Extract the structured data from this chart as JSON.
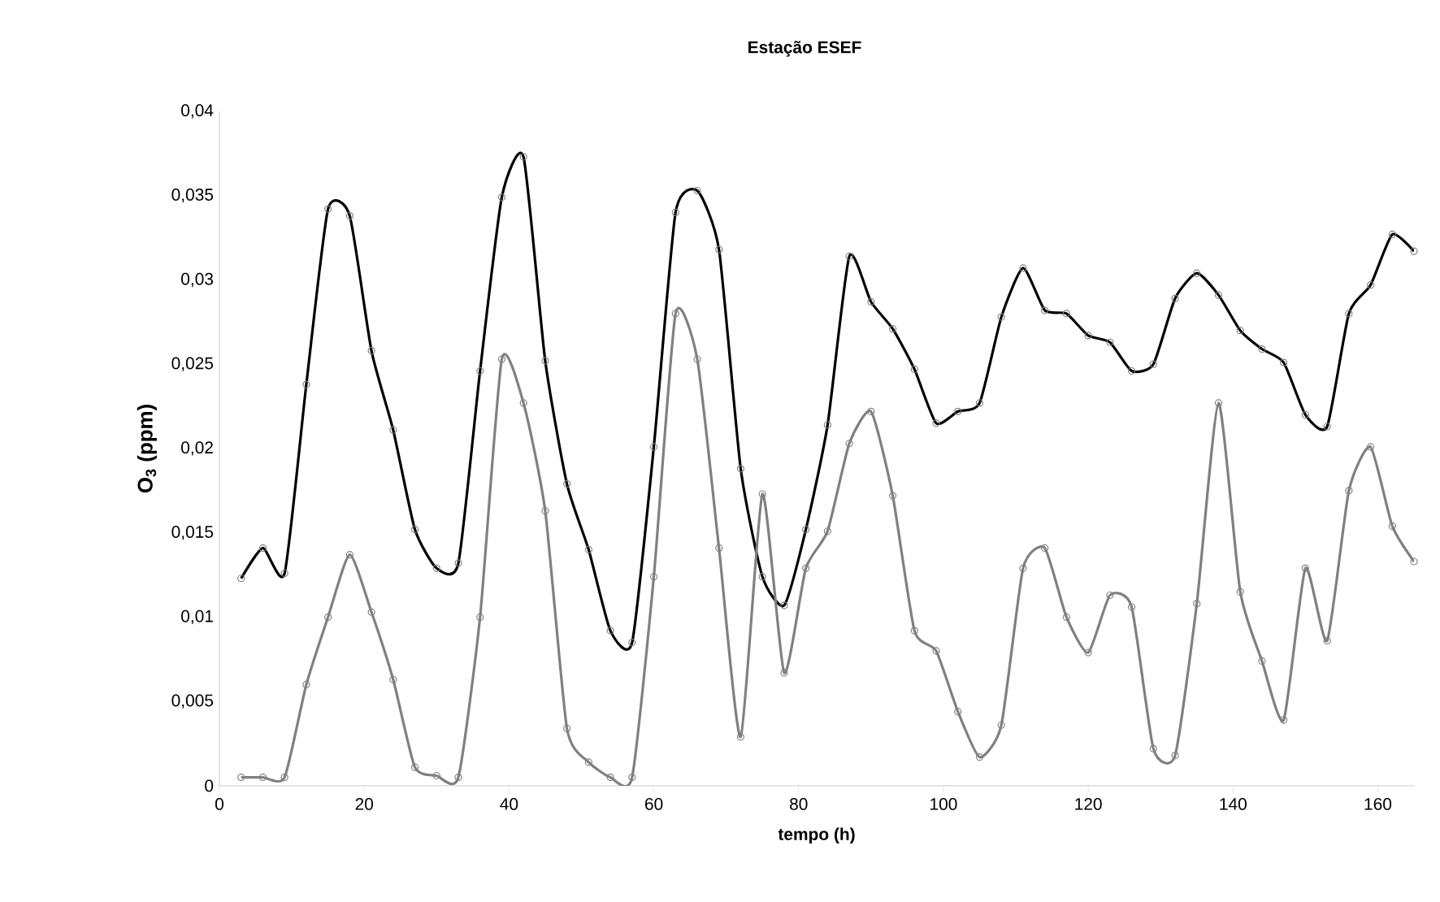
{
  "chart_data": {
    "type": "line",
    "title": "Estação ESEF",
    "xlabel": "tempo (h)",
    "ylabel": "O$_{3}$ (ppm)",
    "x": [
      3,
      6,
      9,
      12,
      15,
      18,
      21,
      24,
      27,
      30,
      33,
      36,
      39,
      42,
      45,
      48,
      51,
      54,
      57,
      60,
      63,
      66,
      69,
      72,
      75,
      78,
      81,
      84,
      87,
      90,
      93,
      96,
      99,
      102,
      105,
      108,
      111,
      114,
      117,
      120,
      123,
      126,
      129,
      132,
      135,
      138,
      141,
      144,
      147,
      150,
      153,
      156,
      159,
      162,
      165
    ],
    "series": [
      {
        "color": "#000000",
        "values": [
          0.0123,
          0.0141,
          0.0126,
          0.0238,
          0.0342,
          0.0338,
          0.0258,
          0.0211,
          0.0152,
          0.0129,
          0.0132,
          0.0246,
          0.0349,
          0.0373,
          0.0252,
          0.0179,
          0.014,
          0.0092,
          0.0085,
          0.0201,
          0.034,
          0.0353,
          0.0318,
          0.0188,
          0.0124,
          0.0107,
          0.0152,
          0.0214,
          0.0314,
          0.0287,
          0.0271,
          0.0247,
          0.0215,
          0.0222,
          0.0227,
          0.0278,
          0.0307,
          0.0282,
          0.028,
          0.0267,
          0.0263,
          0.0246,
          0.025,
          0.0289,
          0.0304,
          0.0291,
          0.027,
          0.0259,
          0.0251,
          0.022,
          0.0213,
          0.028,
          0.0297,
          0.0327,
          0.0317
        ]
      },
      {
        "color": "#808080",
        "values": [
          0.0005,
          0.0005,
          0.0005,
          0.006,
          0.01,
          0.0137,
          0.0103,
          0.0063,
          0.0011,
          0.0006,
          0.0005,
          0.01,
          0.0253,
          0.0227,
          0.0163,
          0.0034,
          0.0014,
          0.0005,
          0.0005,
          0.0124,
          0.028,
          0.0253,
          0.0141,
          0.0029,
          0.0173,
          0.0067,
          0.0129,
          0.0151,
          0.0203,
          0.0222,
          0.0172,
          0.0092,
          0.008,
          0.0044,
          0.0017,
          0.0036,
          0.0129,
          0.0141,
          0.01,
          0.0079,
          0.0113,
          0.0106,
          0.0022,
          0.0018,
          0.0108,
          0.0227,
          0.0115,
          0.0074,
          0.0039,
          0.0129,
          0.0086,
          0.0175,
          0.0201,
          0.0154,
          0.0133
        ]
      }
    ],
    "xlim": [
      0,
      165
    ],
    "xticks": [
      0,
      20,
      40,
      60,
      80,
      100,
      120,
      140,
      160
    ],
    "ylim": [
      0,
      0.04
    ],
    "yticks": [
      {
        "value": 0,
        "label": "0"
      },
      {
        "value": 0.005,
        "label": "0,005"
      },
      {
        "value": 0.01,
        "label": "0,01"
      },
      {
        "value": 0.015,
        "label": "0,015"
      },
      {
        "value": 0.02,
        "label": "0,02"
      },
      {
        "value": 0.025,
        "label": "0,025"
      },
      {
        "value": 0.03,
        "label": "0,03"
      },
      {
        "value": 0.035,
        "label": "0,035"
      },
      {
        "value": 0.04,
        "label": "0,04"
      }
    ],
    "grid": false,
    "legend": false,
    "marker": "circle",
    "line_style": "solid"
  }
}
